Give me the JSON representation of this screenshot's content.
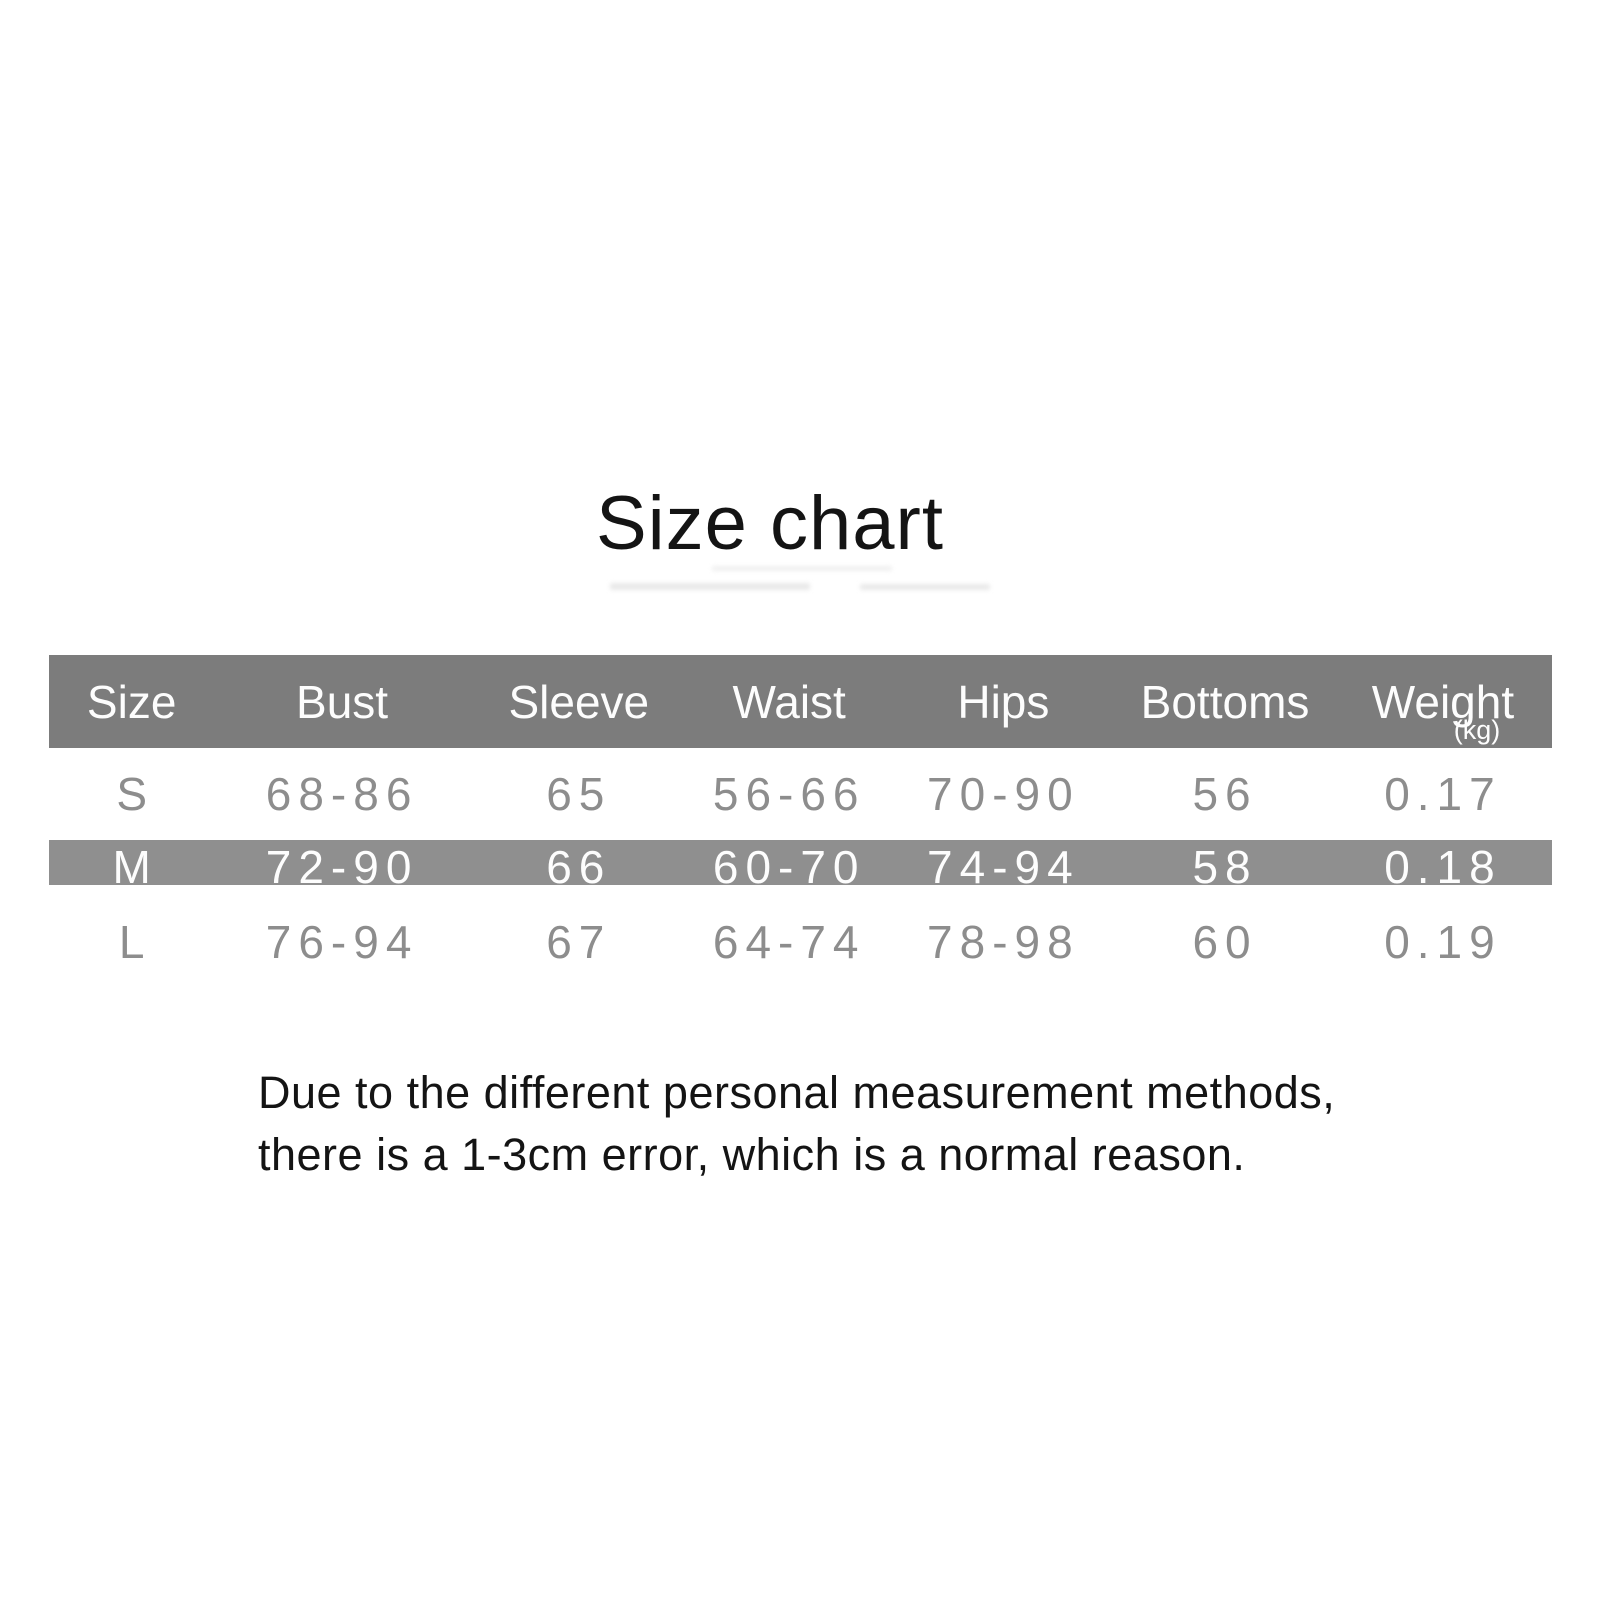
{
  "page": {
    "title": "Size chart"
  },
  "table": {
    "columns": [
      "Size",
      "Bust",
      "Sleeve",
      "Waist",
      "Hips",
      "Bottoms",
      "Weight"
    ],
    "weight_unit": "(kg)",
    "highlighted_row": "M",
    "rows": [
      {
        "size": "S",
        "bust": "68-86",
        "sleeve": "65",
        "waist": "56-66",
        "hips": "70-90",
        "bottoms": "56",
        "weight": "0.17"
      },
      {
        "size": "M",
        "bust": "72-90",
        "sleeve": "66",
        "waist": "60-70",
        "hips": "74-94",
        "bottoms": "58",
        "weight": "0.18"
      },
      {
        "size": "L",
        "bust": "76-94",
        "sleeve": "67",
        "waist": "64-74",
        "hips": "78-98",
        "bottoms": "60",
        "weight": "0.19"
      }
    ]
  },
  "note": {
    "line1": "Due to the different personal measurement methods,",
    "line2": "there is a 1-3cm error, which is a normal reason."
  },
  "colors": {
    "header_bg": "#7c7c7c",
    "highlight_row_bg": "#8f8f8f",
    "muted_text": "#8d8d8d",
    "header_text": "#fdfdfd",
    "body_text": "#141414"
  }
}
